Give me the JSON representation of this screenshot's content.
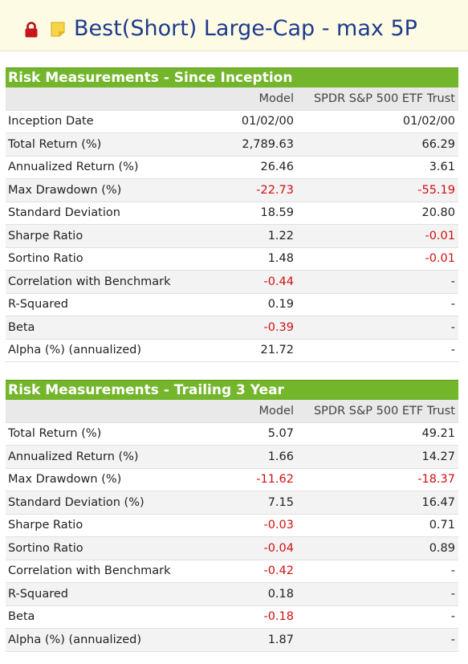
{
  "title": "Best(Short) Large-Cap - max 5P",
  "icons": {
    "lock": "lock-icon",
    "note": "note-icon"
  },
  "colors": {
    "header_green": "#73b52b",
    "title_blue": "#1e3a8e",
    "negative_red": "#d01010",
    "title_bar_bg": "#fdfbe3"
  },
  "columns": {
    "model": "Model",
    "benchmark": "SPDR S&P 500 ETF Trust"
  },
  "sections": [
    {
      "title": "Risk Measurements - Since Inception",
      "rows": [
        {
          "label": "Inception Date",
          "model": "01/02/00",
          "benchmark": "01/02/00"
        },
        {
          "label": "Total Return (%)",
          "model": "2,789.63",
          "benchmark": "66.29"
        },
        {
          "label": "Annualized Return (%)",
          "model": "26.46",
          "benchmark": "3.61"
        },
        {
          "label": "Max Drawdown (%)",
          "model": "-22.73",
          "benchmark": "-55.19"
        },
        {
          "label": "Standard Deviation",
          "model": "18.59",
          "benchmark": "20.80"
        },
        {
          "label": "Sharpe Ratio",
          "model": "1.22",
          "benchmark": "-0.01"
        },
        {
          "label": "Sortino Ratio",
          "model": "1.48",
          "benchmark": "-0.01"
        },
        {
          "label": "Correlation with Benchmark",
          "model": "-0.44",
          "benchmark": "-"
        },
        {
          "label": "R-Squared",
          "model": "0.19",
          "benchmark": "-"
        },
        {
          "label": "Beta",
          "model": "-0.39",
          "benchmark": "-"
        },
        {
          "label": "Alpha (%) (annualized)",
          "model": "21.72",
          "benchmark": "-"
        }
      ]
    },
    {
      "title": "Risk Measurements - Trailing 3 Year",
      "rows": [
        {
          "label": "Total Return (%)",
          "model": "5.07",
          "benchmark": "49.21"
        },
        {
          "label": "Annualized Return (%)",
          "model": "1.66",
          "benchmark": "14.27"
        },
        {
          "label": "Max Drawdown (%)",
          "model": "-11.62",
          "benchmark": "-18.37"
        },
        {
          "label": "Standard Deviation (%)",
          "model": "7.15",
          "benchmark": "16.47"
        },
        {
          "label": "Sharpe Ratio",
          "model": "-0.03",
          "benchmark": "0.71"
        },
        {
          "label": "Sortino Ratio",
          "model": "-0.04",
          "benchmark": "0.89"
        },
        {
          "label": "Correlation with Benchmark",
          "model": "-0.42",
          "benchmark": "-"
        },
        {
          "label": "R-Squared",
          "model": "0.18",
          "benchmark": "-"
        },
        {
          "label": "Beta",
          "model": "-0.18",
          "benchmark": "-"
        },
        {
          "label": "Alpha (%) (annualized)",
          "model": "1.87",
          "benchmark": "-"
        }
      ]
    }
  ]
}
